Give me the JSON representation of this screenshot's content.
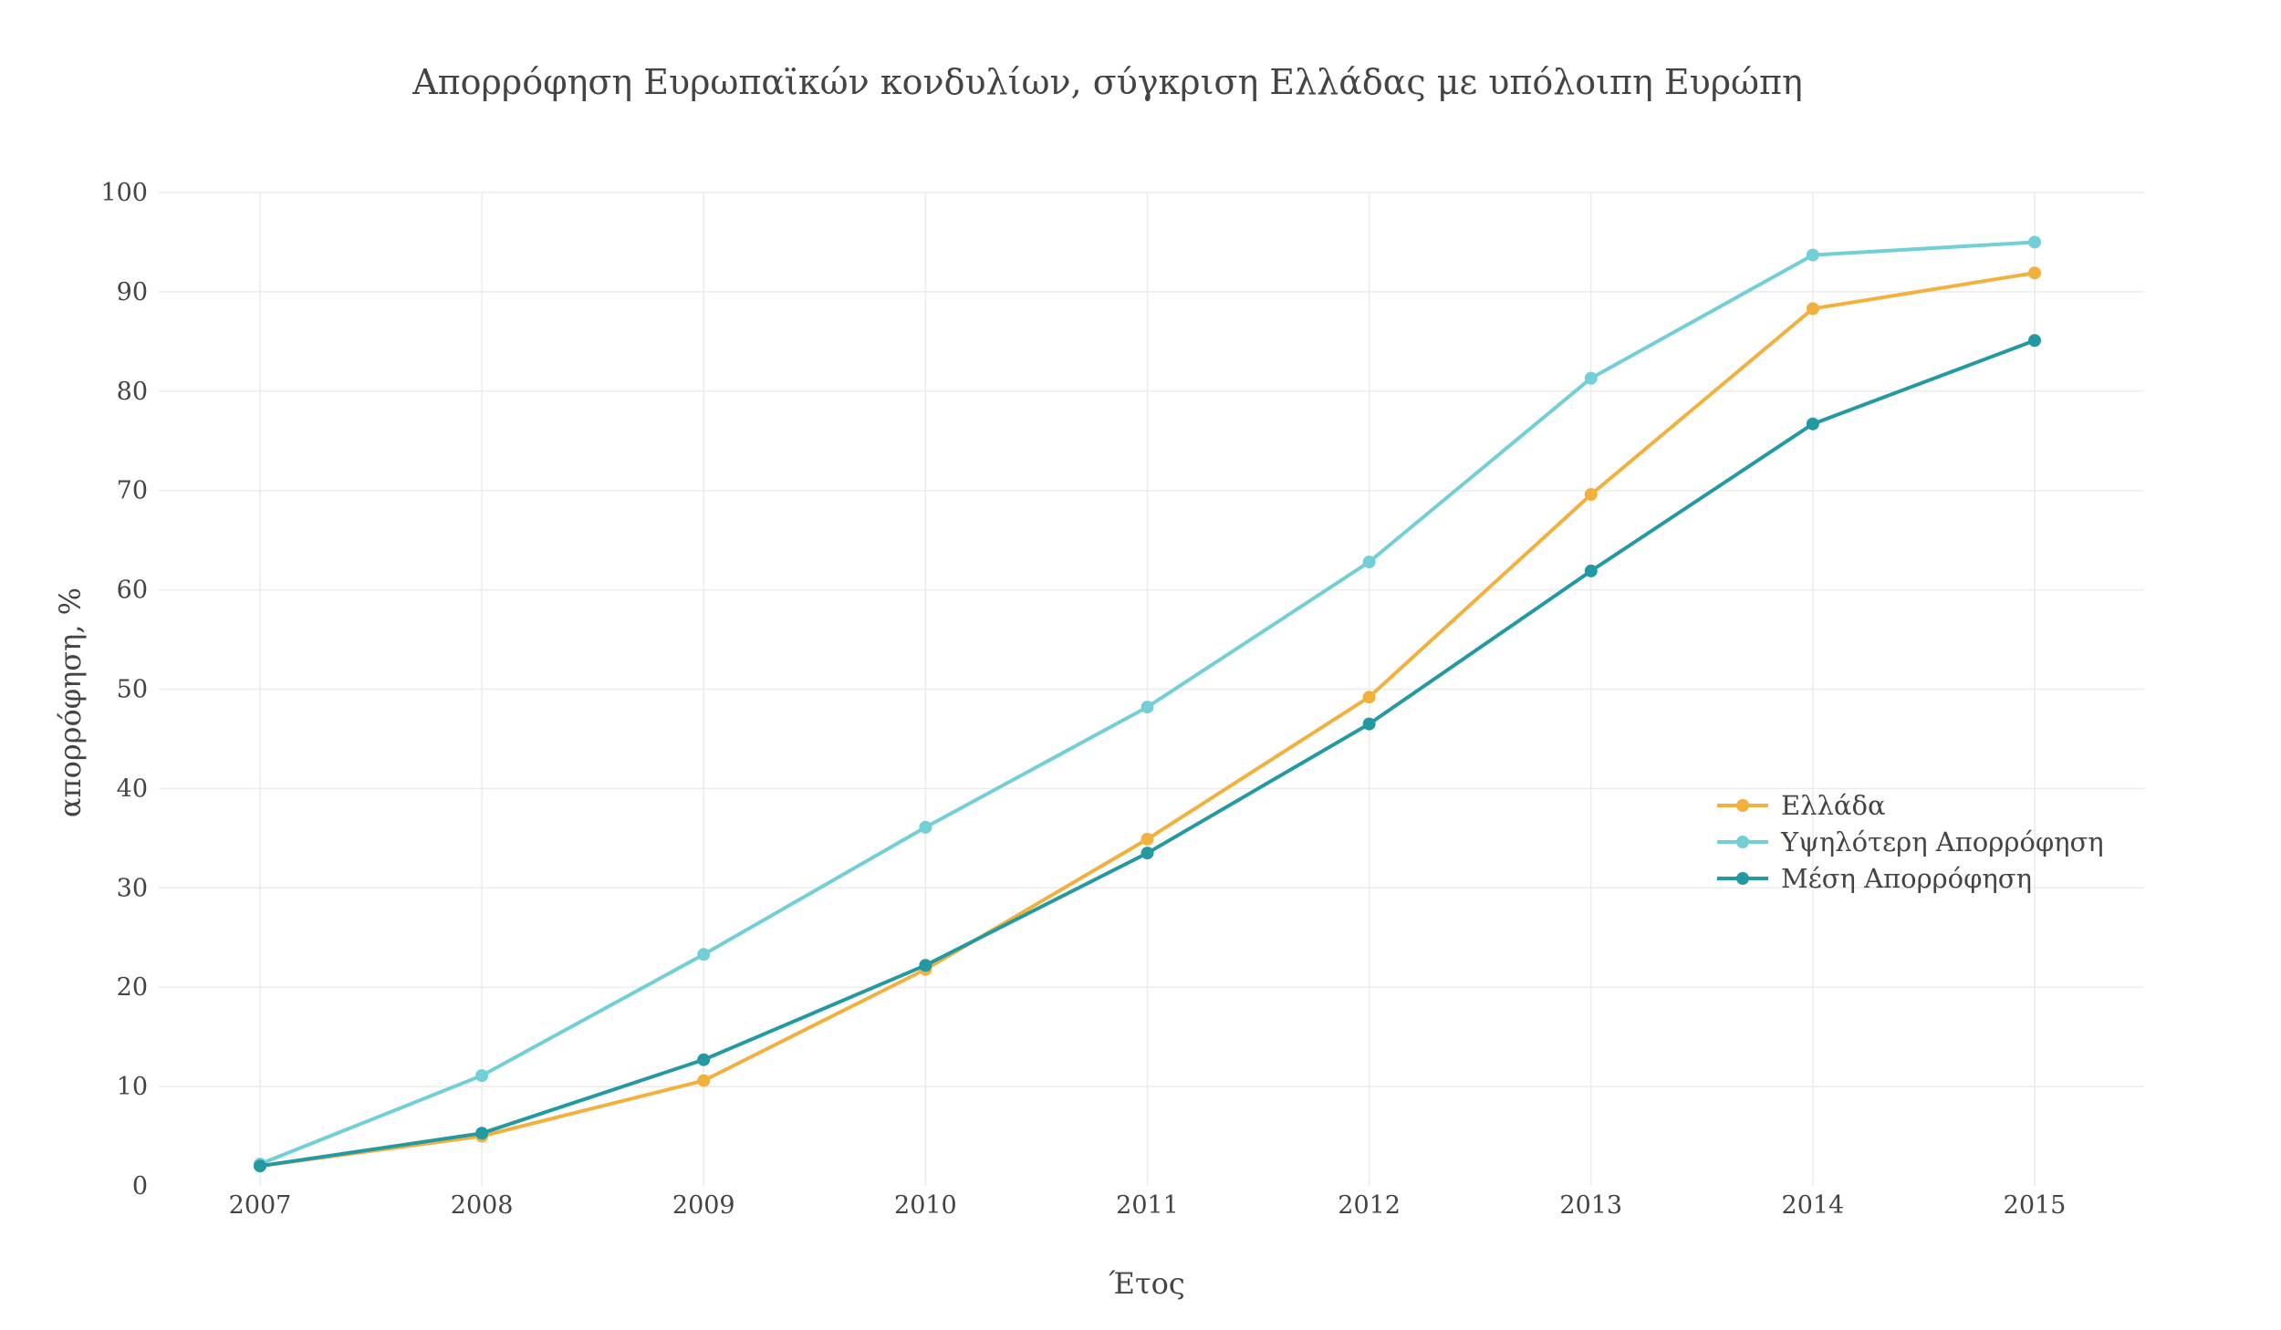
{
  "colors": {
    "Ελλάδα": "#f2b03c",
    "Υψηλότερη Απορρόφηση": "#72cfd6",
    "Μέση Απορρόφηση": "#239aa1"
  },
  "chart_data": {
    "type": "line",
    "title": "Απορρόφηση Ευρωπαϊκών κονδυλίων, σύγκριση Ελλάδας με υπόλοιπη Ευρώπη",
    "xlabel": "Έτος",
    "ylabel": "απορρόφηση, %",
    "x": [
      2007,
      2008,
      2009,
      2010,
      2011,
      2012,
      2013,
      2014,
      2015
    ],
    "x_ticks": [
      "2007",
      "2008",
      "2009",
      "2010",
      "2011",
      "2012",
      "2013",
      "2014",
      "2015"
    ],
    "ylim": [
      0,
      100
    ],
    "y_ticks": [
      "0",
      "10",
      "20",
      "30",
      "40",
      "50",
      "60",
      "70",
      "80",
      "90",
      "100"
    ],
    "grid": true,
    "legend_position": "right",
    "series": [
      {
        "name": "Ελλάδα",
        "values": [
          2,
          5,
          10.6,
          21.8,
          34.9,
          49.2,
          69.6,
          88.3,
          91.9
        ]
      },
      {
        "name": "Υψηλότερη Απορρόφηση",
        "values": [
          2.2,
          11.1,
          23.3,
          36.1,
          48.2,
          62.8,
          81.3,
          93.7,
          95
        ]
      },
      {
        "name": "Μέση Απορρόφηση",
        "values": [
          2,
          5.3,
          12.7,
          22.2,
          33.5,
          46.5,
          61.9,
          76.7,
          85.1
        ]
      }
    ]
  }
}
